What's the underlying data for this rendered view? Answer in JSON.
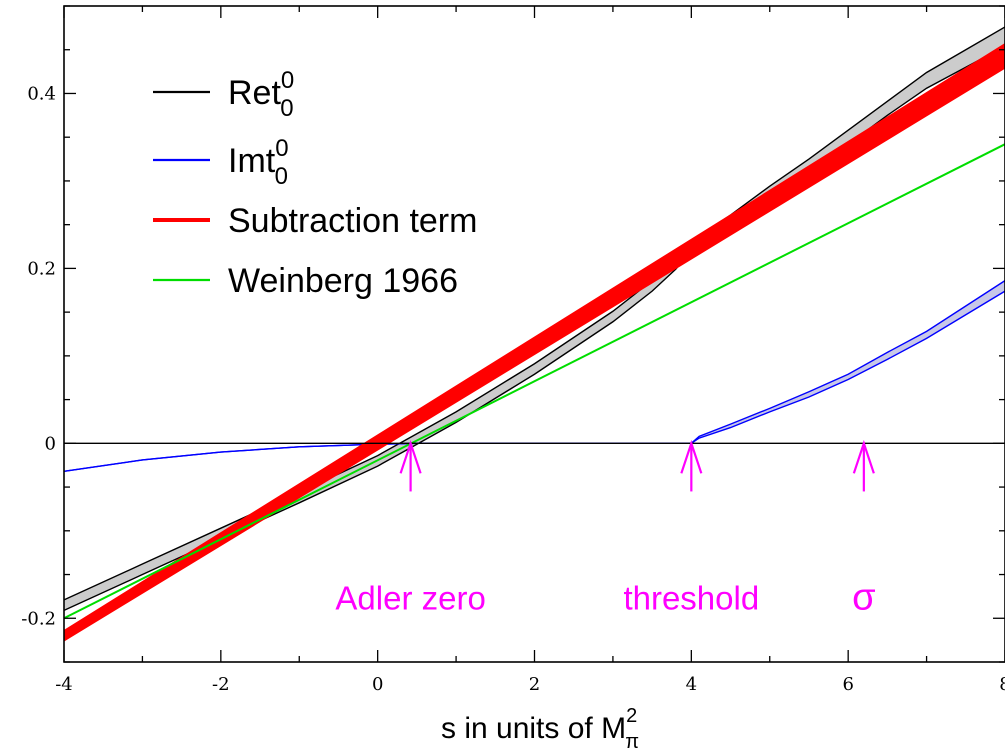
{
  "chart_data": {
    "type": "line",
    "xlabel": {
      "main": "s in units of M",
      "sup": "2",
      "sub": "π"
    },
    "xlim": [
      -4,
      8
    ],
    "ylim": [
      -0.25,
      0.5
    ],
    "x_ticks": [
      -4,
      -2,
      0,
      2,
      4,
      6,
      8
    ],
    "x_tick_labels": [
      "-4",
      "-2",
      "0",
      "2",
      "4",
      "6",
      "8"
    ],
    "y_ticks": [
      -0.2,
      0,
      0.2,
      0.4
    ],
    "y_tick_labels": [
      "-0.2",
      "0",
      "0.2",
      "0.4"
    ],
    "grid": false,
    "legend_position": "top-left",
    "series": [
      {
        "key": "re",
        "legend": {
          "base": "Ret",
          "sup": "0",
          "sub": "0"
        },
        "color": "#000000",
        "band_fill": "#cccccc",
        "x": [
          -4,
          -3,
          -2,
          -1,
          0,
          0.4,
          1,
          2,
          3,
          3.5,
          3.8,
          4,
          4.5,
          5,
          5.5,
          6,
          6.5,
          7,
          7.5,
          8
        ],
        "y": [
          -0.185,
          -0.144,
          -0.103,
          -0.062,
          -0.02,
          0.0,
          0.03,
          0.085,
          0.145,
          0.18,
          0.205,
          0.225,
          0.255,
          0.287,
          0.318,
          0.35,
          0.383,
          0.415,
          0.44,
          0.465
        ],
        "band_halfwidth": [
          0.006,
          0.006,
          0.006,
          0.006,
          0.006,
          0.006,
          0.006,
          0.006,
          0.006,
          0.006,
          0.006,
          0.006,
          0.006,
          0.007,
          0.007,
          0.008,
          0.008,
          0.009,
          0.01,
          0.011
        ]
      },
      {
        "key": "im",
        "legend": {
          "base": "Imt",
          "sup": "0",
          "sub": "0"
        },
        "color": "#0000ff",
        "band_fill": "#c8c8e8",
        "x": [
          -4,
          -3,
          -2,
          -1,
          0,
          0.5,
          4,
          4.1,
          4.5,
          5,
          5.5,
          6,
          6.5,
          7,
          7.5,
          8
        ],
        "y": [
          -0.032,
          -0.019,
          -0.01,
          -0.004,
          -0.001,
          0.0,
          0.0,
          0.007,
          0.02,
          0.038,
          0.056,
          0.076,
          0.1,
          0.124,
          0.152,
          0.18
        ],
        "band_halfwidth": [
          0,
          0,
          0,
          0,
          0,
          0,
          0,
          0.001,
          0.002,
          0.002,
          0.003,
          0.003,
          0.004,
          0.004,
          0.005,
          0.006
        ]
      },
      {
        "key": "sub",
        "legend": {
          "base": "Subtraction term"
        },
        "color": "#ff0000",
        "band_fill": "#ff0000",
        "x": [
          -4,
          8
        ],
        "y": [
          -0.22,
          0.443
        ],
        "band_halfwidth": [
          0.004,
          0.012
        ]
      },
      {
        "key": "wein",
        "legend": {
          "base": "Weinberg 1966"
        },
        "color": "#00dd00",
        "x": [
          -4,
          8
        ],
        "y": [
          -0.2,
          0.342
        ]
      }
    ],
    "annotations": [
      {
        "name": "adler-zero-annotation",
        "text": "Adler zero",
        "x": 0.42,
        "label_y": -0.19,
        "arrow_from_y": -0.055,
        "arrow_to_y": 0.0,
        "color": "#ff00ff"
      },
      {
        "name": "threshold-annotation",
        "text": "threshold",
        "x": 4.0,
        "label_y": -0.19,
        "arrow_from_y": -0.055,
        "arrow_to_y": 0.0,
        "color": "#ff00ff"
      },
      {
        "name": "sigma-annotation",
        "text": "σ",
        "x": 6.2,
        "label_y": -0.19,
        "arrow_from_y": -0.055,
        "arrow_to_y": 0.0,
        "color": "#ff00ff"
      }
    ]
  }
}
